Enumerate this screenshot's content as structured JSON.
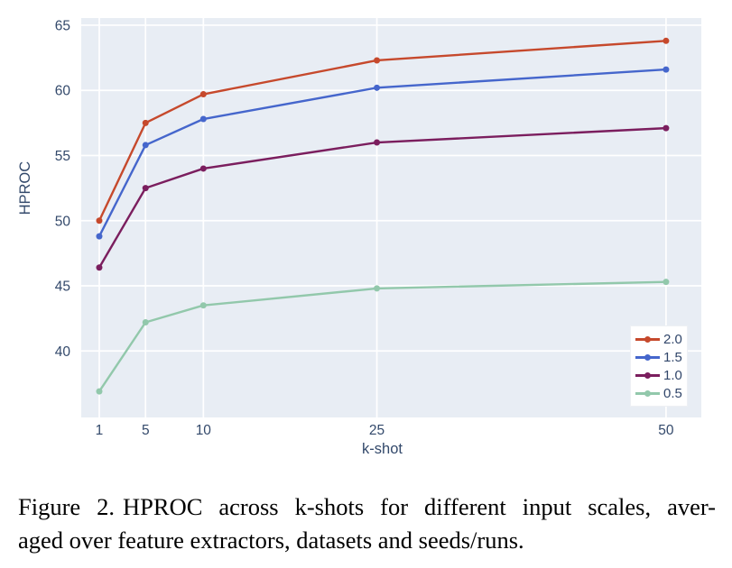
{
  "chart": {
    "plot_bg": "#e8edf4",
    "grid_color": "#ffffff",
    "text_color": "#33496b",
    "y_axis_title": "HPROC",
    "x_axis_title": "k-shot"
  },
  "chart_data": {
    "type": "line",
    "x": [
      1,
      5,
      10,
      25,
      50
    ],
    "x_tick_labels": [
      "1",
      "5",
      "10",
      "25",
      "50"
    ],
    "y_ticks": [
      40,
      45,
      50,
      55,
      60,
      65
    ],
    "series": [
      {
        "name": "2.0",
        "color": "#c6492c",
        "values": [
          50.0,
          57.5,
          59.7,
          62.3,
          63.8
        ]
      },
      {
        "name": "1.5",
        "color": "#4566cc",
        "values": [
          48.8,
          55.8,
          57.8,
          60.2,
          61.6
        ]
      },
      {
        "name": "1.0",
        "color": "#7b1e5e",
        "values": [
          46.4,
          52.5,
          54.0,
          56.0,
          57.1
        ]
      },
      {
        "name": "0.5",
        "color": "#92c8ab",
        "values": [
          36.9,
          42.2,
          43.5,
          44.8,
          45.3
        ]
      }
    ],
    "title": "",
    "xlabel": "k-shot",
    "ylabel": "HPROC",
    "xlim": [
      -0.56,
      53.05
    ],
    "ylim": [
      34.9,
      65.55
    ],
    "grid": true,
    "legend_position": "bottom-right",
    "marker": "circle"
  },
  "caption": {
    "label": "Figure 2.",
    "line1_rest": "HPROC across k-shots for different input scales, aver-",
    "line2": "aged over feature extractors, datasets and seeds/runs."
  }
}
